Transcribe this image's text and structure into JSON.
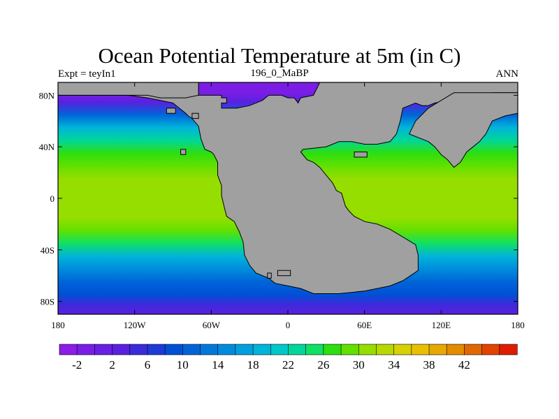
{
  "figure": {
    "title": "Ocean Potential Temperature at 5m (in C)",
    "left_string": "Expt = teyIn1",
    "center_string": "196_0_MaBP",
    "right_string": "ANN"
  },
  "map": {
    "lon_range": [
      -180,
      180
    ],
    "lat_range": [
      -90,
      90
    ],
    "lon_ticks": [
      {
        "value": -180,
        "label": "180"
      },
      {
        "value": -120,
        "label": "120W"
      },
      {
        "value": -60,
        "label": "60W"
      },
      {
        "value": 0,
        "label": "0"
      },
      {
        "value": 60,
        "label": "60E"
      },
      {
        "value": 120,
        "label": "120E"
      },
      {
        "value": 180,
        "label": "180"
      }
    ],
    "lat_ticks": [
      {
        "value": 80,
        "label": "80N"
      },
      {
        "value": 40,
        "label": "40N"
      },
      {
        "value": 0,
        "label": "0"
      },
      {
        "value": -40,
        "label": "40S"
      },
      {
        "value": -80,
        "label": "80S"
      }
    ],
    "land_color": "#a0a0a0",
    "zonal_sst": [
      {
        "lat": 90,
        "t": -2
      },
      {
        "lat": 82,
        "t": -2
      },
      {
        "lat": 75,
        "t": 2
      },
      {
        "lat": 65,
        "t": 10
      },
      {
        "lat": 55,
        "t": 18
      },
      {
        "lat": 45,
        "t": 23
      },
      {
        "lat": 35,
        "t": 26
      },
      {
        "lat": 25,
        "t": 28.5
      },
      {
        "lat": 15,
        "t": 30
      },
      {
        "lat": 5,
        "t": 31
      },
      {
        "lat": 0,
        "t": 31
      },
      {
        "lat": -5,
        "t": 31
      },
      {
        "lat": -15,
        "t": 30
      },
      {
        "lat": -25,
        "t": 28
      },
      {
        "lat": -35,
        "t": 24
      },
      {
        "lat": -45,
        "t": 18
      },
      {
        "lat": -55,
        "t": 14
      },
      {
        "lat": -65,
        "t": 11
      },
      {
        "lat": -75,
        "t": 8
      },
      {
        "lat": -82,
        "t": 4
      },
      {
        "lat": -90,
        "t": 2
      }
    ],
    "land_masses": [
      {
        "name": "west-pangea",
        "points": [
          [
            -70,
            80
          ],
          [
            -52,
            80
          ],
          [
            -52,
            78
          ],
          [
            -48,
            78
          ],
          [
            -48,
            74
          ],
          [
            -52,
            74
          ],
          [
            -52,
            70
          ],
          [
            -40,
            70
          ],
          [
            -30,
            72
          ],
          [
            -20,
            76
          ],
          [
            -15,
            80
          ],
          [
            -5,
            80
          ],
          [
            0,
            78
          ],
          [
            5,
            78
          ],
          [
            8,
            74
          ],
          [
            10,
            78
          ],
          [
            20,
            80
          ],
          [
            25,
            90
          ],
          [
            180,
            90
          ],
          [
            180,
            82
          ],
          [
            160,
            82
          ],
          [
            150,
            80
          ],
          [
            140,
            78
          ],
          [
            125,
            76
          ],
          [
            115,
            74
          ],
          [
            110,
            72
          ],
          [
            105,
            72
          ],
          [
            100,
            74
          ],
          [
            95,
            72
          ],
          [
            90,
            70
          ],
          [
            88,
            60
          ],
          [
            85,
            50
          ],
          [
            80,
            44
          ],
          [
            70,
            42
          ],
          [
            60,
            42
          ],
          [
            50,
            44
          ],
          [
            40,
            44
          ],
          [
            30,
            40
          ],
          [
            12,
            38
          ],
          [
            10,
            36
          ],
          [
            15,
            30
          ],
          [
            20,
            28
          ],
          [
            25,
            24
          ],
          [
            30,
            18
          ],
          [
            35,
            12
          ],
          [
            38,
            6
          ],
          [
            42,
            4
          ],
          [
            45,
            -6
          ],
          [
            48,
            -10
          ],
          [
            52,
            -14
          ],
          [
            60,
            -18
          ],
          [
            70,
            -20
          ],
          [
            80,
            -24
          ],
          [
            90,
            -30
          ],
          [
            100,
            -36
          ],
          [
            102,
            -44
          ],
          [
            102,
            -56
          ],
          [
            96,
            -60
          ],
          [
            90,
            -64
          ],
          [
            80,
            -68
          ],
          [
            70,
            -70
          ],
          [
            60,
            -72
          ],
          [
            40,
            -74
          ],
          [
            20,
            -74
          ],
          [
            10,
            -70
          ],
          [
            0,
            -68
          ],
          [
            -10,
            -66
          ],
          [
            -15,
            -62
          ],
          [
            -25,
            -58
          ],
          [
            -30,
            -52
          ],
          [
            -34,
            -44
          ],
          [
            -35,
            -34
          ],
          [
            -38,
            -26
          ],
          [
            -42,
            -18
          ],
          [
            -48,
            -14
          ],
          [
            -50,
            -6
          ],
          [
            -52,
            2
          ],
          [
            -52,
            10
          ],
          [
            -55,
            18
          ],
          [
            -55,
            28
          ],
          [
            -58,
            34
          ],
          [
            -60,
            36
          ],
          [
            -65,
            38
          ],
          [
            -68,
            46
          ],
          [
            -70,
            56
          ],
          [
            -75,
            62
          ],
          [
            -78,
            64
          ],
          [
            -80,
            66
          ],
          [
            -85,
            70
          ],
          [
            -90,
            74
          ],
          [
            -100,
            76
          ],
          [
            -110,
            78
          ],
          [
            -125,
            80
          ],
          [
            -150,
            80
          ],
          [
            -170,
            80
          ],
          [
            -180,
            80
          ],
          [
            -180,
            90
          ],
          [
            -70,
            90
          ]
        ]
      },
      {
        "name": "arctic-strip",
        "points": [
          [
            -180,
            90
          ],
          [
            -180,
            80
          ],
          [
            -110,
            80
          ],
          [
            -100,
            78
          ],
          [
            -80,
            78
          ],
          [
            -70,
            80
          ],
          [
            -70,
            90
          ]
        ]
      },
      {
        "name": "east-peninsula",
        "points": [
          [
            110,
            44
          ],
          [
            115,
            40
          ],
          [
            120,
            34
          ],
          [
            125,
            30
          ],
          [
            130,
            24
          ],
          [
            135,
            28
          ],
          [
            140,
            36
          ],
          [
            145,
            40
          ],
          [
            150,
            44
          ],
          [
            155,
            50
          ],
          [
            160,
            60
          ],
          [
            170,
            64
          ],
          [
            180,
            66
          ],
          [
            180,
            82
          ],
          [
            130,
            82
          ],
          [
            120,
            76
          ],
          [
            110,
            70
          ],
          [
            100,
            60
          ],
          [
            95,
            50
          ]
        ]
      },
      {
        "name": "island-1",
        "points": [
          [
            -84,
            38
          ],
          [
            -80,
            38
          ],
          [
            -80,
            34
          ],
          [
            -84,
            34
          ]
        ]
      },
      {
        "name": "island-2",
        "points": [
          [
            -16,
            -58
          ],
          [
            -13,
            -58
          ],
          [
            -13,
            -62
          ],
          [
            -16,
            -62
          ]
        ]
      },
      {
        "name": "island-3",
        "points": [
          [
            -8,
            -56
          ],
          [
            2,
            -56
          ],
          [
            2,
            -60
          ],
          [
            -8,
            -60
          ]
        ]
      },
      {
        "name": "island-4",
        "points": [
          [
            52,
            36
          ],
          [
            62,
            36
          ],
          [
            62,
            32
          ],
          [
            52,
            32
          ]
        ]
      },
      {
        "name": "island-5",
        "points": [
          [
            -95,
            70
          ],
          [
            -88,
            70
          ],
          [
            -88,
            66
          ],
          [
            -95,
            66
          ]
        ]
      },
      {
        "name": "island-6",
        "points": [
          [
            -75,
            66
          ],
          [
            -70,
            66
          ],
          [
            -70,
            62
          ],
          [
            -75,
            62
          ]
        ]
      }
    ]
  },
  "colorbar": {
    "colors": [
      "#8c1ce6",
      "#7a1ee6",
      "#6a1fe6",
      "#5a20e0",
      "#3c2bda",
      "#1e3ad8",
      "#0050d6",
      "#0064d8",
      "#0078da",
      "#008cdc",
      "#00a0de",
      "#00b4da",
      "#00c8c8",
      "#00d69a",
      "#10e064",
      "#2ede10",
      "#62e000",
      "#96de00",
      "#b8d800",
      "#d8d000",
      "#e8c000",
      "#e8a800",
      "#e48c00",
      "#e06800",
      "#e04400",
      "#e01c00"
    ],
    "labels": [
      "-2",
      "2",
      "6",
      "10",
      "14",
      "18",
      "22",
      "26",
      "30",
      "34",
      "38",
      "42"
    ]
  }
}
